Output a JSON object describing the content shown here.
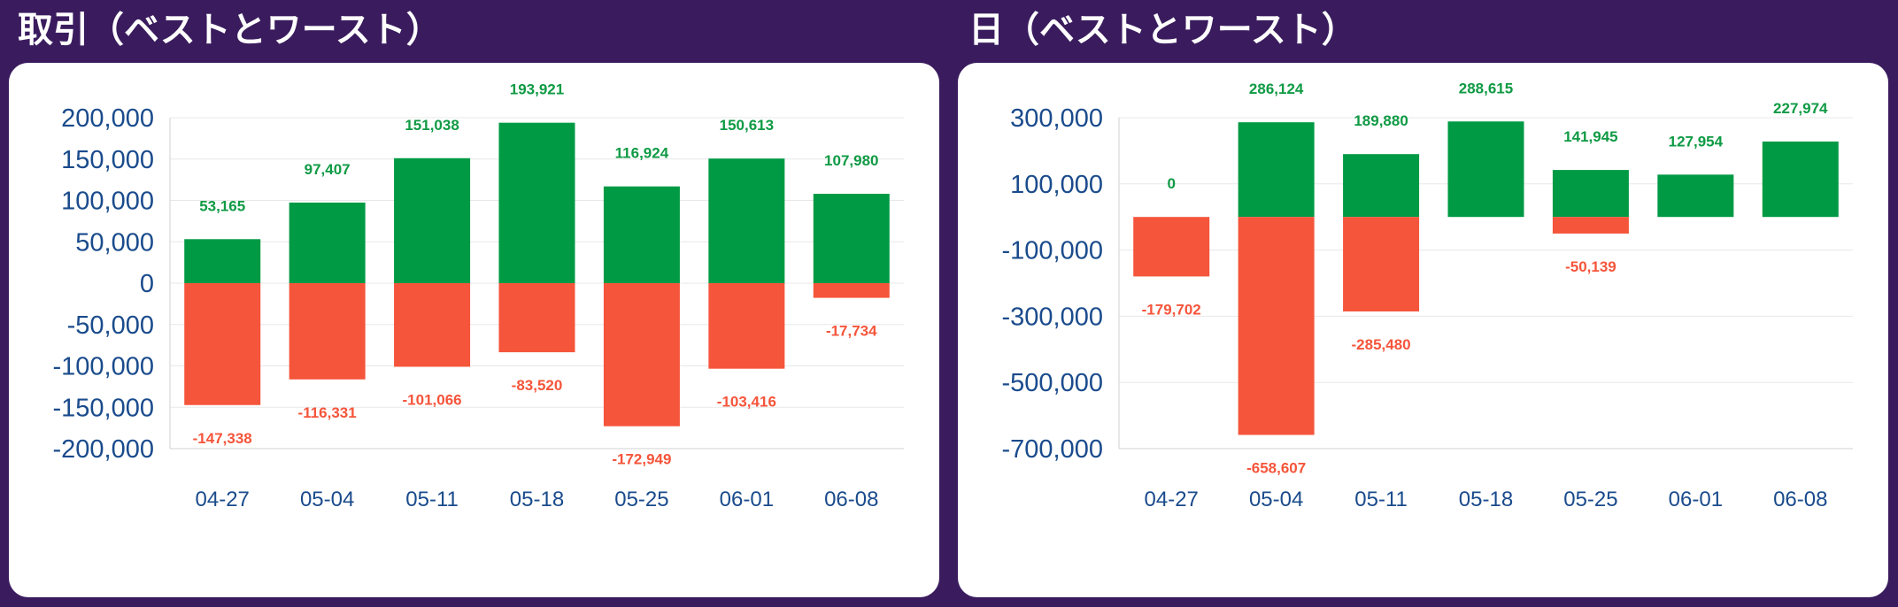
{
  "colors": {
    "background": "#3a1c5e",
    "card": "#ffffff",
    "positive": "#009a44",
    "negative": "#f5553b",
    "tick_text": "#1a4b8c"
  },
  "chart_data": [
    {
      "type": "bar",
      "title": "取引（ベストとワースト）",
      "categories": [
        "04-27",
        "05-04",
        "05-11",
        "05-18",
        "05-25",
        "06-01",
        "06-08"
      ],
      "series": [
        {
          "values": [
            53165,
            97407,
            151038,
            193921,
            116924,
            150613,
            107980
          ]
        },
        {
          "values": [
            -147338,
            -116331,
            -101066,
            -83520,
            -172949,
            -103416,
            -17734
          ]
        }
      ],
      "value_labels": {
        "best": [
          "53,165",
          "97,407",
          "151,038",
          "193,921",
          "116,924",
          "150,613",
          "107,980"
        ],
        "worst": [
          "-147,338",
          "-116,331",
          "-101,066",
          "-83,520",
          "-172,949",
          "-103,416",
          "-17,734"
        ]
      },
      "yticks": [
        200000,
        150000,
        100000,
        50000,
        0,
        -50000,
        -100000,
        -150000,
        -200000
      ],
      "ytick_labels": [
        "200,000",
        "150,000",
        "100,000",
        "50,000",
        "0",
        "-50,000",
        "-100,000",
        "-150,000",
        "-200,000"
      ],
      "ylim": [
        -200000,
        200000
      ],
      "grid": true
    },
    {
      "type": "bar",
      "title": "日（ベストとワースト）",
      "categories": [
        "04-27",
        "05-04",
        "05-11",
        "05-18",
        "05-25",
        "06-01",
        "06-08"
      ],
      "series": [
        {
          "values": [
            0,
            286124,
            189880,
            288615,
            141945,
            127954,
            227974
          ]
        },
        {
          "values": [
            -179702,
            -658607,
            -285480,
            null,
            -50139,
            null,
            null
          ]
        }
      ],
      "value_labels": {
        "best": [
          "0",
          "286,124",
          "189,880",
          "288,615",
          "141,945",
          "127,954",
          "227,974"
        ],
        "worst": [
          "-179,702",
          "-658,607",
          "-285,480",
          "",
          "-50,139",
          "",
          ""
        ]
      },
      "yticks": [
        300000,
        100000,
        -100000,
        -300000,
        -500000,
        -700000
      ],
      "ytick_labels": [
        "300,000",
        "100,000",
        "-100,000",
        "-300,000",
        "-500,000",
        "-700,000"
      ],
      "ylim": [
        -700000,
        300000
      ],
      "grid": true
    }
  ]
}
